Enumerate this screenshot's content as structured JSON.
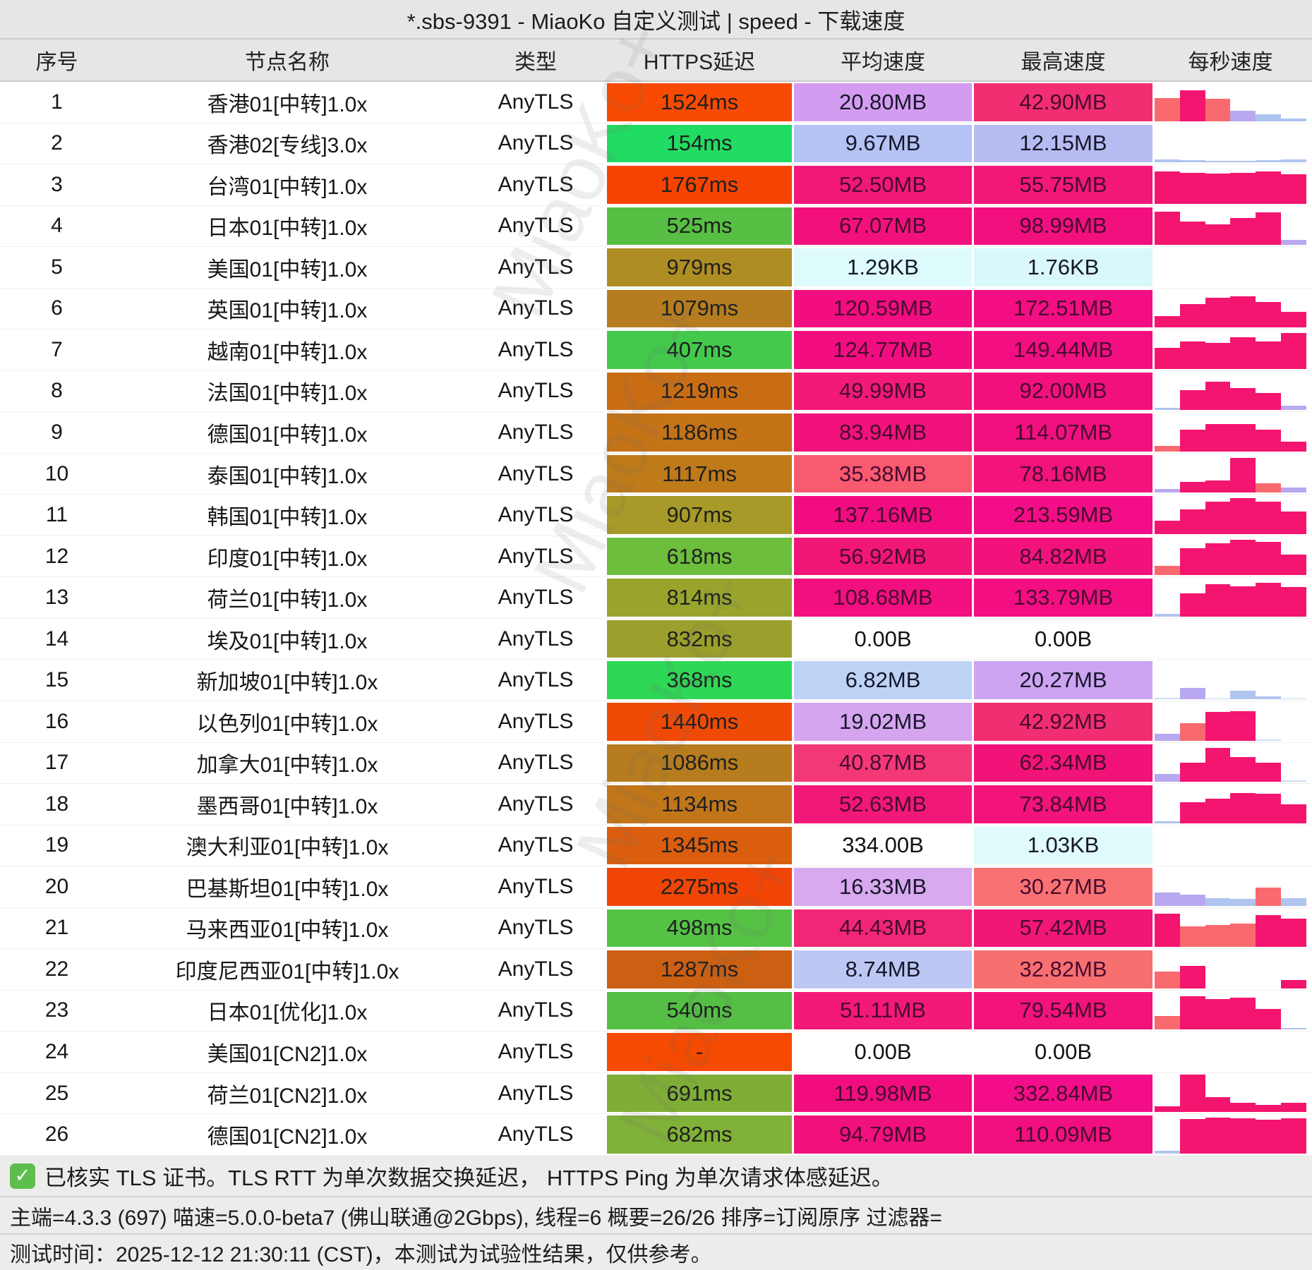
{
  "title": "*.sbs-9391 - MiaoKo 自定义测试 | speed - 下载速度",
  "columns": [
    "序号",
    "节点名称",
    "类型",
    "HTTPS延迟",
    "平均速度",
    "最高速度",
    "每秒速度"
  ],
  "watermark": "MiaoKo+",
  "bar_colors": {
    "p": "#F3156F",
    "s": "#F96A6E",
    "lp": "#B9A8F0",
    "lb": "#AFC4EF",
    "pb": "#C9DCF6"
  },
  "rows": [
    {
      "index": "1",
      "name": "香港01[中转]1.0x",
      "type": "AnyTLS",
      "latency": "1524ms",
      "latency_color": "#F94A02",
      "avg": "20.80MB",
      "avg_color": "#D49CF0",
      "max": "42.90MB",
      "max_color": "#F22E72",
      "bars": [
        [
          60,
          "s"
        ],
        [
          82,
          "p"
        ],
        [
          58,
          "s"
        ],
        [
          28,
          "lp"
        ],
        [
          17,
          "lb"
        ],
        [
          7,
          "lb"
        ]
      ]
    },
    {
      "index": "2",
      "name": "香港02[专线]3.0x",
      "type": "AnyTLS",
      "latency": "154ms",
      "latency_color": "#21DC62",
      "avg": "9.67MB",
      "avg_color": "#B5C2F4",
      "max": "12.15MB",
      "max_color": "#B6BCF2",
      "bars": [
        [
          7,
          "lb"
        ],
        [
          5,
          "lb"
        ],
        [
          4,
          "lb"
        ],
        [
          4,
          "lb"
        ],
        [
          5,
          "lb"
        ],
        [
          8,
          "lb"
        ]
      ]
    },
    {
      "index": "3",
      "name": "台湾01[中转]1.0x",
      "type": "AnyTLS",
      "latency": "1767ms",
      "latency_color": "#F64302",
      "avg": "52.50MB",
      "avg_color": "#F2187A",
      "max": "55.75MB",
      "max_color": "#F21779",
      "bars": [
        [
          85,
          "p"
        ],
        [
          82,
          "p"
        ],
        [
          80,
          "p"
        ],
        [
          82,
          "p"
        ],
        [
          86,
          "p"
        ],
        [
          78,
          "p"
        ]
      ]
    },
    {
      "index": "4",
      "name": "日本01[中转]1.0x",
      "type": "AnyTLS",
      "latency": "525ms",
      "latency_color": "#58BF45",
      "avg": "67.07MB",
      "avg_color": "#F2117C",
      "max": "98.99MB",
      "max_color": "#F20F7E",
      "bars": [
        [
          88,
          "p"
        ],
        [
          62,
          "p"
        ],
        [
          55,
          "p"
        ],
        [
          72,
          "p"
        ],
        [
          86,
          "p"
        ],
        [
          14,
          "lp"
        ]
      ]
    },
    {
      "index": "5",
      "name": "美国01[中转]1.0x",
      "type": "AnyTLS",
      "latency": "979ms",
      "latency_color": "#AE8D22",
      "avg": "1.29KB",
      "avg_color": "#DEFBFB",
      "max": "1.76KB",
      "max_color": "#D8F8F9",
      "bars": []
    },
    {
      "index": "6",
      "name": "英国01[中转]1.0x",
      "type": "AnyTLS",
      "latency": "1079ms",
      "latency_color": "#B57D1F",
      "avg": "120.59MB",
      "avg_color": "#F20D80",
      "max": "172.51MB",
      "max_color": "#F30E84",
      "bars": [
        [
          30,
          "p"
        ],
        [
          62,
          "p"
        ],
        [
          78,
          "p"
        ],
        [
          83,
          "p"
        ],
        [
          68,
          "p"
        ],
        [
          42,
          "p"
        ]
      ]
    },
    {
      "index": "7",
      "name": "越南01[中转]1.0x",
      "type": "AnyTLS",
      "latency": "407ms",
      "latency_color": "#43CA4C",
      "avg": "124.77MB",
      "avg_color": "#F20D80",
      "max": "149.44MB",
      "max_color": "#F30E82",
      "bars": [
        [
          55,
          "p"
        ],
        [
          72,
          "p"
        ],
        [
          68,
          "p"
        ],
        [
          83,
          "p"
        ],
        [
          72,
          "p"
        ],
        [
          95,
          "p"
        ]
      ]
    },
    {
      "index": "8",
      "name": "法国01[中转]1.0x",
      "type": "AnyTLS",
      "latency": "1219ms",
      "latency_color": "#C96D15",
      "avg": "49.99MB",
      "avg_color": "#F21979",
      "max": "92.00MB",
      "max_color": "#F2107D",
      "bars": [
        [
          6,
          "lb"
        ],
        [
          52,
          "p"
        ],
        [
          75,
          "p"
        ],
        [
          58,
          "p"
        ],
        [
          45,
          "p"
        ],
        [
          12,
          "lp"
        ]
      ]
    },
    {
      "index": "9",
      "name": "德国01[中转]1.0x",
      "type": "AnyTLS",
      "latency": "1186ms",
      "latency_color": "#C57317",
      "avg": "83.94MB",
      "avg_color": "#F2127C",
      "max": "114.07MB",
      "max_color": "#F20F80",
      "bars": [
        [
          15,
          "s"
        ],
        [
          58,
          "p"
        ],
        [
          73,
          "p"
        ],
        [
          73,
          "p"
        ],
        [
          58,
          "p"
        ],
        [
          25,
          "p"
        ]
      ]
    },
    {
      "index": "10",
      "name": "泰国01[中转]1.0x",
      "type": "AnyTLS",
      "latency": "1117ms",
      "latency_color": "#BF7A1A",
      "avg": "35.38MB",
      "avg_color": "#F85A70",
      "max": "78.16MB",
      "max_color": "#F2137B",
      "bars": [
        [
          10,
          "lp"
        ],
        [
          28,
          "p"
        ],
        [
          33,
          "p"
        ],
        [
          92,
          "p"
        ],
        [
          25,
          "s"
        ],
        [
          14,
          "lp"
        ]
      ]
    },
    {
      "index": "11",
      "name": "韩国01[中转]1.0x",
      "type": "AnyTLS",
      "latency": "907ms",
      "latency_color": "#A79A28",
      "avg": "137.16MB",
      "avg_color": "#F20C81",
      "max": "213.59MB",
      "max_color": "#F30D86",
      "bars": [
        [
          35,
          "p"
        ],
        [
          65,
          "p"
        ],
        [
          85,
          "p"
        ],
        [
          95,
          "p"
        ],
        [
          85,
          "p"
        ],
        [
          60,
          "p"
        ]
      ]
    },
    {
      "index": "12",
      "name": "印度01[中转]1.0x",
      "type": "AnyTLS",
      "latency": "618ms",
      "latency_color": "#6DBE3C",
      "avg": "56.92MB",
      "avg_color": "#F21678",
      "max": "84.82MB",
      "max_color": "#F2127C",
      "bars": [
        [
          25,
          "s"
        ],
        [
          72,
          "p"
        ],
        [
          85,
          "p"
        ],
        [
          95,
          "p"
        ],
        [
          88,
          "p"
        ],
        [
          55,
          "p"
        ]
      ]
    },
    {
      "index": "13",
      "name": "荷兰01[中转]1.0x",
      "type": "AnyTLS",
      "latency": "814ms",
      "latency_color": "#98A42C",
      "avg": "108.68MB",
      "avg_color": "#F20F7F",
      "max": "133.79MB",
      "max_color": "#F30E82",
      "bars": [
        [
          8,
          "lb"
        ],
        [
          62,
          "p"
        ],
        [
          85,
          "p"
        ],
        [
          80,
          "p"
        ],
        [
          90,
          "p"
        ],
        [
          78,
          "p"
        ]
      ]
    },
    {
      "index": "14",
      "name": "埃及01[中转]1.0x",
      "type": "AnyTLS",
      "latency": "832ms",
      "latency_color": "#9AA02B",
      "avg": "0.00B",
      "avg_color": "#FFFFFF",
      "max": "0.00B",
      "max_color": "#FFFFFF",
      "bars": []
    },
    {
      "index": "15",
      "name": "新加坡01[中转]1.0x",
      "type": "AnyTLS",
      "latency": "368ms",
      "latency_color": "#2FD757",
      "avg": "6.82MB",
      "avg_color": "#BDD4F6",
      "max": "20.27MB",
      "max_color": "#CDA4F2",
      "bars": [
        [
          4,
          "pb"
        ],
        [
          30,
          "lp"
        ],
        [
          2,
          "pb"
        ],
        [
          22,
          "lb"
        ],
        [
          8,
          "lb"
        ],
        [
          2,
          "pb"
        ]
      ]
    },
    {
      "index": "16",
      "name": "以色列01[中转]1.0x",
      "type": "AnyTLS",
      "latency": "1440ms",
      "latency_color": "#EF4A06",
      "avg": "19.02MB",
      "avg_color": "#D6A5EF",
      "max": "42.92MB",
      "max_color": "#F22E72",
      "bars": [
        [
          18,
          "lp"
        ],
        [
          45,
          "s"
        ],
        [
          75,
          "p"
        ],
        [
          78,
          "p"
        ],
        [
          3,
          "pb"
        ],
        [
          0,
          "pb"
        ]
      ]
    },
    {
      "index": "17",
      "name": "加拿大01[中转]1.0x",
      "type": "AnyTLS",
      "latency": "1086ms",
      "latency_color": "#B77C1E",
      "avg": "40.87MB",
      "avg_color": "#F33878",
      "max": "62.34MB",
      "max_color": "#F21378",
      "bars": [
        [
          20,
          "lp"
        ],
        [
          50,
          "p"
        ],
        [
          90,
          "p"
        ],
        [
          65,
          "p"
        ],
        [
          50,
          "p"
        ],
        [
          4,
          "pb"
        ]
      ]
    },
    {
      "index": "18",
      "name": "墨西哥01[中转]1.0x",
      "type": "AnyTLS",
      "latency": "1134ms",
      "latency_color": "#C1761A",
      "avg": "52.63MB",
      "avg_color": "#F21879",
      "max": "73.84MB",
      "max_color": "#F2147B",
      "bars": [
        [
          5,
          "lb"
        ],
        [
          55,
          "p"
        ],
        [
          65,
          "p"
        ],
        [
          80,
          "p"
        ],
        [
          78,
          "p"
        ],
        [
          50,
          "p"
        ]
      ]
    },
    {
      "index": "19",
      "name": "澳大利亚01[中转]1.0x",
      "type": "AnyTLS",
      "latency": "1345ms",
      "latency_color": "#DA5E0E",
      "avg": "334.00B",
      "avg_color": "#FFFFFF",
      "max": "1.03KB",
      "max_color": "#DFFBFB",
      "bars": []
    },
    {
      "index": "20",
      "name": "巴基斯坦01[中转]1.0x",
      "type": "AnyTLS",
      "latency": "2275ms",
      "latency_color": "#F04505",
      "avg": "16.33MB",
      "avg_color": "#D8A9EF",
      "max": "30.27MB",
      "max_color": "#F97273",
      "bars": [
        [
          35,
          "lp"
        ],
        [
          30,
          "lp"
        ],
        [
          20,
          "lb"
        ],
        [
          18,
          "lb"
        ],
        [
          48,
          "s"
        ],
        [
          20,
          "lb"
        ]
      ]
    },
    {
      "index": "21",
      "name": "马来西亚01[中转]1.0x",
      "type": "AnyTLS",
      "latency": "498ms",
      "latency_color": "#55C246",
      "avg": "44.43MB",
      "avg_color": "#F22676",
      "max": "57.42MB",
      "max_color": "#F21679",
      "bars": [
        [
          88,
          "p"
        ],
        [
          55,
          "s"
        ],
        [
          58,
          "s"
        ],
        [
          62,
          "s"
        ],
        [
          85,
          "p"
        ],
        [
          75,
          "p"
        ]
      ]
    },
    {
      "index": "22",
      "name": "印度尼西亚01[中转]1.0x",
      "type": "AnyTLS",
      "latency": "1287ms",
      "latency_color": "#CC5F11",
      "avg": "8.74MB",
      "avg_color": "#BCC8F3",
      "max": "32.82MB",
      "max_color": "#F86F70",
      "bars": [
        [
          45,
          "s"
        ],
        [
          60,
          "p"
        ],
        [
          0,
          "pb"
        ],
        [
          0,
          "pb"
        ],
        [
          0,
          "pb"
        ],
        [
          22,
          "p"
        ]
      ]
    },
    {
      "index": "23",
      "name": "日本01[优化]1.0x",
      "type": "AnyTLS",
      "latency": "540ms",
      "latency_color": "#54BE45",
      "avg": "51.11MB",
      "avg_color": "#F21979",
      "max": "79.54MB",
      "max_color": "#F2137B",
      "bars": [
        [
          35,
          "s"
        ],
        [
          88,
          "p"
        ],
        [
          80,
          "p"
        ],
        [
          85,
          "p"
        ],
        [
          55,
          "p"
        ],
        [
          4,
          "lb"
        ]
      ]
    },
    {
      "index": "24",
      "name": "美国01[CN2]1.0x",
      "type": "AnyTLS",
      "latency": "-",
      "latency_color": "#F54A00",
      "avg": "0.00B",
      "avg_color": "#FFFFFF",
      "max": "0.00B",
      "max_color": "#FFFFFF",
      "bars": []
    },
    {
      "index": "25",
      "name": "荷兰01[CN2]1.0x",
      "type": "AnyTLS",
      "latency": "691ms",
      "latency_color": "#7FAE36",
      "avg": "119.98MB",
      "avg_color": "#F20D7F",
      "max": "332.84MB",
      "max_color": "#F30D89",
      "bars": [
        [
          15,
          "p"
        ],
        [
          100,
          "p"
        ],
        [
          40,
          "p"
        ],
        [
          25,
          "p"
        ],
        [
          20,
          "p"
        ],
        [
          25,
          "p"
        ]
      ]
    },
    {
      "index": "26",
      "name": "德国01[CN2]1.0x",
      "type": "AnyTLS",
      "latency": "682ms",
      "latency_color": "#80B138",
      "avg": "94.79MB",
      "avg_color": "#F2107D",
      "max": "110.09MB",
      "max_color": "#F20F7F",
      "bars": [
        [
          8,
          "lb"
        ],
        [
          92,
          "p"
        ],
        [
          95,
          "p"
        ],
        [
          93,
          "p"
        ],
        [
          90,
          "p"
        ],
        [
          93,
          "p"
        ]
      ]
    }
  ],
  "footer": {
    "check_icon": "✓",
    "line1": "已核实 TLS 证书。TLS RTT 为单次数据交换延迟， HTTPS Ping 为单次请求体感延迟。",
    "line2": "主端=4.3.3 (697) 喵速=5.0.0-beta7 (佛山联通@2Gbps), 线程=6 概要=26/26 排序=订阅原序 过滤器=",
    "line3": "测试时间：2025-12-12 21:30:11 (CST)，本测试为试验性结果，仅供参考。"
  }
}
